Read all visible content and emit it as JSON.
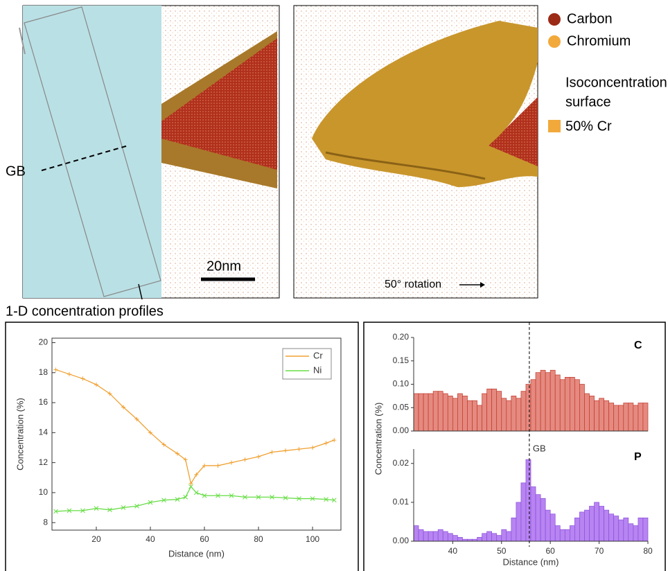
{
  "top": {
    "gb_label": "GB",
    "scale_bar": "20nm",
    "rotation": "50° rotation",
    "legend": {
      "items": [
        {
          "name": "Carbon",
          "color": "#9b2a16"
        },
        {
          "name": "Chromium",
          "color": "#f2a93b"
        }
      ],
      "iso_title": [
        "Isoconcentration",
        "surface"
      ],
      "iso_item": {
        "name": "50% Cr",
        "color": "#f2a93b"
      }
    }
  },
  "heading": "1-D concentration profiles",
  "chart_data": [
    {
      "type": "line",
      "xlabel": "Distance  (nm)",
      "ylabel": "Concentration  (%)",
      "x": [
        5,
        10,
        15,
        20,
        25,
        30,
        35,
        40,
        45,
        50,
        53,
        55,
        57,
        60,
        65,
        70,
        75,
        80,
        85,
        90,
        95,
        100,
        105,
        108
      ],
      "series": [
        {
          "name": "Cr",
          "color": "#f0a030",
          "marker": "+",
          "values": [
            18.2,
            17.9,
            17.6,
            17.2,
            16.6,
            15.7,
            14.9,
            14.0,
            13.2,
            12.6,
            12.2,
            10.6,
            11.2,
            11.8,
            11.8,
            12.0,
            12.2,
            12.4,
            12.7,
            12.8,
            12.9,
            13.0,
            13.3,
            13.5
          ]
        },
        {
          "name": "Ni",
          "color": "#66dd44",
          "marker": "x",
          "values": [
            8.75,
            8.8,
            8.8,
            8.95,
            8.85,
            9.0,
            9.1,
            9.35,
            9.5,
            9.55,
            9.7,
            10.4,
            10.0,
            9.8,
            9.8,
            9.8,
            9.7,
            9.7,
            9.7,
            9.65,
            9.6,
            9.6,
            9.55,
            9.5
          ]
        }
      ],
      "xlim": [
        3.6,
        110.5
      ],
      "ylim": [
        7.5,
        20.3
      ],
      "xticks": [
        20,
        40,
        60,
        80,
        100
      ],
      "yticks": [
        8,
        10,
        12,
        14,
        16,
        18,
        20
      ],
      "legend": "upper right"
    },
    {
      "type": "histogram",
      "annotation": "C",
      "color": "#e58a80",
      "edge_color": "#c0392b",
      "ylabel": "Concentration  (%)",
      "bins": [
        32,
        33,
        34,
        35,
        36,
        37,
        38,
        39,
        40,
        41,
        42,
        43,
        44,
        45,
        46,
        47,
        48,
        49,
        50,
        51,
        52,
        53,
        54,
        55,
        56,
        57,
        58,
        59,
        60,
        61,
        62,
        63,
        64,
        65,
        66,
        67,
        68,
        69,
        70,
        71,
        72,
        73,
        74,
        75,
        76,
        77,
        78,
        79,
        80
      ],
      "values": [
        0.08,
        0.08,
        0.08,
        0.08,
        0.085,
        0.085,
        0.08,
        0.075,
        0.07,
        0.08,
        0.075,
        0.065,
        0.065,
        0.055,
        0.08,
        0.09,
        0.09,
        0.085,
        0.07,
        0.065,
        0.075,
        0.07,
        0.085,
        0.1,
        0.11,
        0.125,
        0.13,
        0.125,
        0.13,
        0.12,
        0.11,
        0.115,
        0.115,
        0.11,
        0.1,
        0.08,
        0.075,
        0.065,
        0.07,
        0.065,
        0.06,
        0.055,
        0.055,
        0.06,
        0.06,
        0.055,
        0.06,
        0.06
      ],
      "xlim": [
        32,
        80
      ],
      "ylim": [
        0,
        0.2
      ],
      "yticks": [
        {
          "value": 0,
          "label": "0.00"
        },
        {
          "value": 0.05,
          "label": "0.05"
        },
        {
          "value": 0.1,
          "label": "0.10"
        },
        {
          "value": 0.15,
          "label": "0.15"
        },
        {
          "value": 0.2,
          "label": "0.20"
        }
      ],
      "vline": 55.7
    },
    {
      "type": "histogram",
      "annotation": "P",
      "color": "#b784f2",
      "edge_color": "#8a4fd8",
      "xlabel": "Distance  (nm)",
      "bins": [
        32,
        33,
        34,
        35,
        36,
        37,
        38,
        39,
        40,
        41,
        42,
        43,
        44,
        45,
        46,
        47,
        48,
        49,
        50,
        51,
        52,
        53,
        54,
        55,
        56,
        57,
        58,
        59,
        60,
        61,
        62,
        63,
        64,
        65,
        66,
        67,
        68,
        69,
        70,
        71,
        72,
        73,
        74,
        75,
        76,
        77,
        78,
        79,
        80
      ],
      "values": [
        0.004,
        0.003,
        0.0025,
        0.0025,
        0.0025,
        0.003,
        0.0025,
        0.002,
        0.0015,
        0.001,
        0.0005,
        0.0005,
        0.0005,
        0.001,
        0.002,
        0.0025,
        0.002,
        0.0015,
        0.003,
        0.0025,
        0.006,
        0.01,
        0.015,
        0.021,
        0.014,
        0.012,
        0.011,
        0.008,
        0.007,
        0.004,
        0.003,
        0.003,
        0.004,
        0.006,
        0.0075,
        0.008,
        0.009,
        0.01,
        0.009,
        0.008,
        0.007,
        0.0065,
        0.0055,
        0.006,
        0.0045,
        0.004,
        0.006,
        0.006
      ],
      "xlim": [
        32,
        80
      ],
      "ylim": [
        0,
        0.0237
      ],
      "xticks": [
        40,
        50,
        60,
        70,
        80
      ],
      "yticks": [
        {
          "value": 0,
          "label": "0.00"
        },
        {
          "value": 0.01,
          "label": "0.01"
        },
        {
          "value": 0.02,
          "label": "0.02"
        }
      ],
      "vline": 55.7,
      "vline_label": "GB"
    }
  ]
}
